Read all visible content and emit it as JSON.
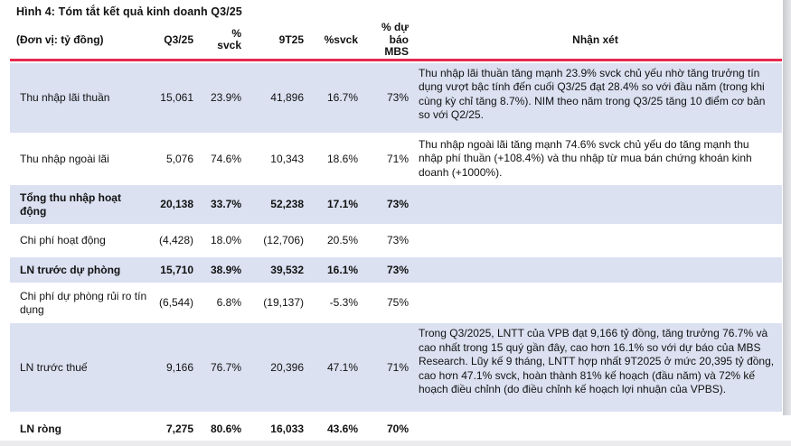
{
  "title": "Hình 4: Tóm tắt kết quả kinh doanh Q3/25",
  "colors": {
    "accent_red": "#e62a4f",
    "row_shade": "#dbe1f1"
  },
  "table": {
    "headers": {
      "unit": "(Đơn vị: tỷ đồng)",
      "q3": "Q3/25",
      "svck_q3": "%\nsvck",
      "t9": "9T25",
      "svck_9t": "%svck",
      "forecast": "% dự\nbáo\nMBS",
      "comment": "Nhận xét"
    },
    "rows": [
      {
        "label": "Thu nhập lãi thuần",
        "q3": "15,061",
        "svck_q3": "23.9%",
        "t9": "41,896",
        "svck_9t": "16.7%",
        "forecast": "73%",
        "comment": "Thu nhập lãi thuần tăng mạnh 23.9% svck chủ yếu nhờ tăng trưởng tín dụng vượt bậc tính đến cuối Q3/25 đạt 28.4% so với đầu năm (trong khi cùng kỳ chỉ tăng 8.7%). NIM theo năm trong Q3/25 tăng 10 điểm cơ bản so với Q2/25."
      },
      {
        "label": "Thu nhập ngoài lãi",
        "q3": "5,076",
        "svck_q3": "74.6%",
        "t9": "10,343",
        "svck_9t": "18.6%",
        "forecast": "71%",
        "comment": "Thu nhập ngoài lãi tăng mạnh 74.6% svck chủ yếu do tăng mạnh thu nhập phí thuần (+108.4%) và thu nhập từ mua bán chứng khoán kinh doanh (+1000%)."
      },
      {
        "label": "Tổng thu nhập hoạt động",
        "q3": "20,138",
        "svck_q3": "33.7%",
        "t9": "52,238",
        "svck_9t": "17.1%",
        "forecast": "73%",
        "comment": ""
      },
      {
        "label": "Chi phí hoạt động",
        "q3": "(4,428)",
        "svck_q3": "18.0%",
        "t9": "(12,706)",
        "svck_9t": "20.5%",
        "forecast": "73%",
        "comment": ""
      },
      {
        "label": "LN trước dự phòng",
        "q3": "15,710",
        "svck_q3": "38.9%",
        "t9": "39,532",
        "svck_9t": "16.1%",
        "forecast": "73%",
        "comment": ""
      },
      {
        "label": "Chi phí dự phòng rủi ro tín dụng",
        "q3": "(6,544)",
        "svck_q3": "6.8%",
        "t9": "(19,137)",
        "svck_9t": "-5.3%",
        "forecast": "75%",
        "comment": ""
      },
      {
        "label": "LN trước thuế",
        "q3": "9,166",
        "svck_q3": "76.7%",
        "t9": "20,396",
        "svck_9t": "47.1%",
        "forecast": "71%",
        "comment": "Trong Q3/2025, LNTT của VPB đạt 9,166 tỷ đồng, tăng trưởng 76.7% và cao nhất trong 15 quý gần đây, cao hơn 16.1% so với dự báo của MBS Research. Lũy kế 9 tháng, LNTT hợp nhất 9T2025 ở mức 20,395 tỷ đồng, cao hơn 47.1% svck, hoàn thành 81% kế hoạch (đầu năm) và 72% kế hoạch điều chỉnh (do điều chỉnh kế hoạch lợi nhuận của VPBS)."
      },
      {
        "label": "LN ròng",
        "q3": "7,275",
        "svck_q3": "80.6%",
        "t9": "16,033",
        "svck_9t": "43.6%",
        "forecast": "70%",
        "comment": ""
      }
    ]
  }
}
